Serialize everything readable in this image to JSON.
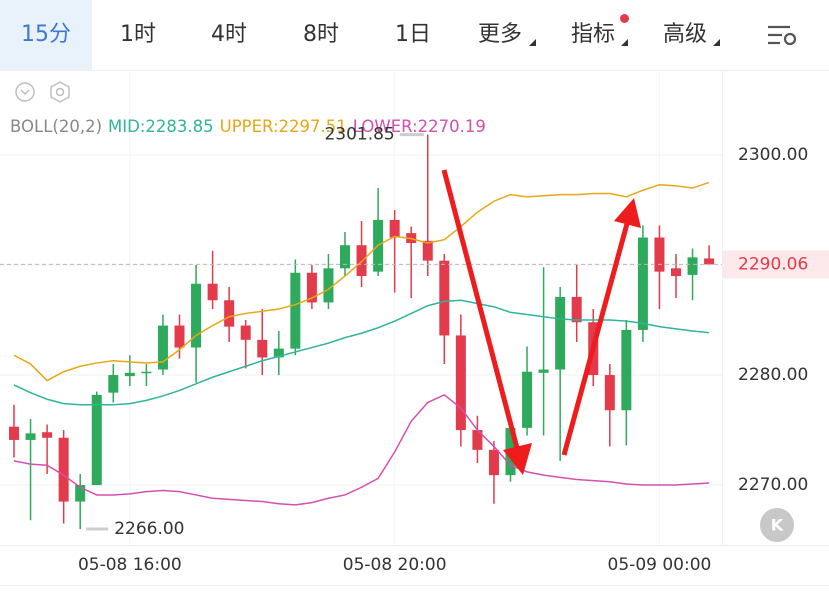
{
  "tabs": [
    "15分",
    "1时",
    "4时",
    "8时",
    "1日",
    "更多",
    "指标",
    "高级"
  ],
  "indicator": {
    "name": "BOLL(20,2)",
    "labels": [
      "MID:2283.85",
      "UPPER:2297.51",
      "LOWER:2270.19"
    ]
  },
  "chart_data": {
    "type": "candlestick",
    "categories": [
      null,
      null,
      null,
      null,
      null,
      null,
      null,
      "05-08 16:00",
      null,
      null,
      null,
      null,
      null,
      null,
      null,
      null,
      null,
      null,
      null,
      null,
      null,
      null,
      null,
      "05-08 20:00",
      null,
      null,
      null,
      null,
      null,
      null,
      null,
      null,
      null,
      null,
      null,
      null,
      null,
      null,
      null,
      "05-09 00:00",
      null,
      null,
      null
    ],
    "open": [
      2275.3,
      2274.1,
      2274.8,
      2274.3,
      2268.5,
      2270,
      2278.4,
      2279.9,
      2280.2,
      2280.5,
      2284.5,
      2282.5,
      2288.3,
      2286.8,
      2284.5,
      2283.2,
      2281.6,
      2282.4,
      2289.3,
      2286.6,
      2289.7,
      2291.8,
      2289.4,
      2294.1,
      2292.9,
      2292.2,
      2290.4,
      2283.6,
      2275,
      2273.2,
      2270.9,
      2275.2,
      2280.2,
      2280.5,
      2287.1,
      2284.8,
      2280,
      2276.8,
      2284.1,
      2292.5,
      2289.7,
      2289.1,
      2290.6
    ],
    "high": [
      2277.3,
      2276,
      2275.5,
      2275,
      2271,
      2278.5,
      2281,
      2281.8,
      2281,
      2285.5,
      2285.5,
      2290,
      2291.3,
      2288,
      2285,
      2286,
      2284,
      2290.5,
      2290,
      2291,
      2293,
      2294,
      2297,
      2295,
      2293.5,
      2301.85,
      2291,
      2285.5,
      2276.3,
      2274,
      2275.5,
      2282.6,
      2289.8,
      2288,
      2290,
      2286,
      2281,
      2285,
      2293.6,
      2293.6,
      2291,
      2291.5,
      2291.8
    ],
    "low": [
      2272.5,
      2266.8,
      2271,
      2266.5,
      2266,
      2270,
      2277.5,
      2279,
      2279,
      2280,
      2281.5,
      2279.3,
      2286,
      2283,
      2280.6,
      2280,
      2280,
      2281.8,
      2286,
      2286,
      2289,
      2288,
      2289,
      2287.5,
      2287,
      2289,
      2281,
      2273.5,
      2272,
      2268.3,
      2270.3,
      2274.5,
      2274.5,
      2272.2,
      2283,
      2279,
      2273.5,
      2273.6,
      2283,
      2286,
      2287,
      2286.8,
      2290
    ],
    "close": [
      2274.1,
      2274.7,
      2274.3,
      2268.5,
      2270,
      2278.2,
      2280,
      2280.2,
      2280.3,
      2284.5,
      2282.5,
      2288.3,
      2286.8,
      2284.4,
      2283.2,
      2281.6,
      2282.4,
      2289.3,
      2286.6,
      2289.7,
      2291.8,
      2289,
      2294.1,
      2292.5,
      2292,
      2290.4,
      2283.6,
      2275,
      2273.2,
      2270.9,
      2275.2,
      2280.3,
      2280.5,
      2287.1,
      2284.8,
      2280,
      2276.8,
      2284.1,
      2292.5,
      2289.4,
      2289,
      2290.7,
      2290.06
    ],
    "up_color": "#2eaa5c",
    "down_color": "#e33b4b",
    "series": [
      {
        "name": "MID",
        "color": "#2fb59a",
        "values": [
          2279.1,
          2278.4,
          2277.8,
          2277.4,
          2277.3,
          2277.3,
          2277.3,
          2277.4,
          2277.7,
          2278.1,
          2278.6,
          2279.2,
          2279.8,
          2280.3,
          2280.8,
          2281.3,
          2281.7,
          2282.1,
          2282.5,
          2282.9,
          2283.4,
          2283.8,
          2284.3,
          2284.9,
          2285.6,
          2286.3,
          2286.7,
          2286.8,
          2286.5,
          2286.2,
          2285.7,
          2285.5,
          2285.3,
          2285.1,
          2285,
          2285,
          2285,
          2284.9,
          2284.7,
          2284.4,
          2284.2,
          2284,
          2283.85
        ]
      },
      {
        "name": "UPPER",
        "color": "#e6a817",
        "values": [
          2281.8,
          2281,
          2279.5,
          2280.3,
          2280.8,
          2281.1,
          2281.3,
          2281.2,
          2281.1,
          2281.2,
          2282.3,
          2283.6,
          2284.5,
          2285.3,
          2285.6,
          2285.8,
          2286,
          2286.4,
          2287,
          2287.8,
          2289,
          2290.3,
          2291.8,
          2292.6,
          2292.4,
          2292,
          2292.3,
          2293.5,
          2294.8,
          2295.8,
          2296.4,
          2296.2,
          2296.3,
          2296.4,
          2296.4,
          2296.5,
          2296.5,
          2296.2,
          2296.8,
          2297.3,
          2297.2,
          2297,
          2297.51
        ]
      },
      {
        "name": "LOWER",
        "color": "#d64fb0",
        "values": [
          2272.2,
          2271.9,
          2271.8,
          2270.9,
          2269.8,
          2269.1,
          2269.1,
          2269.2,
          2269.4,
          2269.5,
          2269.4,
          2269.1,
          2268.8,
          2268.7,
          2268.6,
          2268.5,
          2268.3,
          2268.2,
          2268.4,
          2268.8,
          2269.1,
          2269.8,
          2270.6,
          2273,
          2275.8,
          2277.5,
          2278.2,
          2277,
          2275,
          2273.5,
          2271.8,
          2271.2,
          2270.9,
          2270.7,
          2270.5,
          2270.4,
          2270.3,
          2270.1,
          2270,
          2270,
          2270,
          2270.1,
          2270.19
        ]
      }
    ],
    "ylim": [
      2264.55,
      2307.73
    ],
    "yticks": [
      {
        "value": 2270,
        "label": "2270.00"
      },
      {
        "value": 2280,
        "label": "2280.00"
      },
      {
        "value": 2290,
        "label": "2290.00"
      },
      {
        "value": 2300,
        "label": "2300.00"
      }
    ],
    "last_price": {
      "value": 2290.06,
      "label": "2290.06"
    },
    "annotations": [
      {
        "value": 2301.85,
        "label": "2301.85"
      },
      {
        "value": 2266,
        "label": "2266.00"
      }
    ],
    "grid": true
  }
}
